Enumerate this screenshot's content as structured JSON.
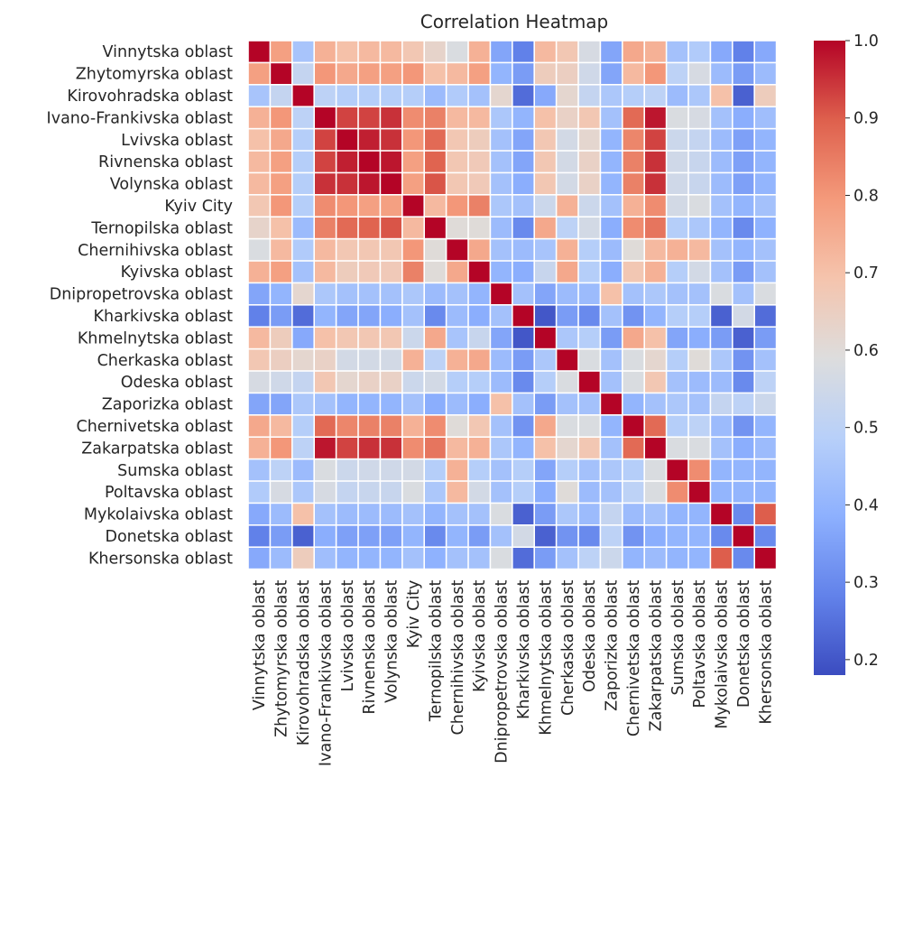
{
  "chart_data": {
    "type": "heatmap",
    "title": "Correlation Heatmap",
    "colormap": "coolwarm",
    "vmin": 0.18,
    "vmax": 1.0,
    "colorbar_ticks": [
      "1.0",
      "0.9",
      "0.8",
      "0.7",
      "0.6",
      "0.5",
      "0.4",
      "0.3",
      "0.2"
    ],
    "colorbar_tick_values": [
      1.0,
      0.9,
      0.8,
      0.7,
      0.6,
      0.5,
      0.4,
      0.3,
      0.2
    ],
    "labels": [
      "Vinnytska oblast",
      "Zhytomyrska oblast",
      "Kirovohradska oblast",
      "Ivano-Frankivska oblast",
      "Lvivska oblast",
      "Rivnenska oblast",
      "Volynska oblast",
      "Kyiv City",
      "Ternopilska oblast",
      "Chernihivska oblast",
      "Kyivska oblast",
      "Dnipropetrovska oblast",
      "Kharkivska oblast",
      "Khmelnytska oblast",
      "Cherkaska oblast",
      "Odeska oblast",
      "Zaporizka oblast",
      "Chernivetska oblast",
      "Zakarpatska oblast",
      "Sumska oblast",
      "Poltavska oblast",
      "Mykolaivska oblast",
      "Donetska oblast",
      "Khersonska oblast"
    ],
    "matrix": [
      [
        1.0,
        0.78,
        0.45,
        0.74,
        0.7,
        0.72,
        0.72,
        0.68,
        0.63,
        0.58,
        0.74,
        0.36,
        0.28,
        0.72,
        0.68,
        0.57,
        0.36,
        0.76,
        0.74,
        0.44,
        0.47,
        0.37,
        0.28,
        0.37
      ],
      [
        0.78,
        1.0,
        0.52,
        0.8,
        0.76,
        0.78,
        0.78,
        0.8,
        0.7,
        0.72,
        0.78,
        0.4,
        0.34,
        0.66,
        0.65,
        0.55,
        0.36,
        0.72,
        0.8,
        0.5,
        0.57,
        0.42,
        0.34,
        0.42
      ],
      [
        0.45,
        0.52,
        1.0,
        0.5,
        0.48,
        0.48,
        0.48,
        0.48,
        0.42,
        0.47,
        0.44,
        0.62,
        0.24,
        0.37,
        0.62,
        0.52,
        0.46,
        0.48,
        0.5,
        0.42,
        0.46,
        0.7,
        0.22,
        0.66
      ],
      [
        0.74,
        0.8,
        0.5,
        1.0,
        0.93,
        0.93,
        0.95,
        0.82,
        0.84,
        0.72,
        0.72,
        0.46,
        0.4,
        0.7,
        0.64,
        0.68,
        0.44,
        0.88,
        0.98,
        0.58,
        0.57,
        0.44,
        0.38,
        0.43
      ],
      [
        0.7,
        0.76,
        0.48,
        0.93,
        1.0,
        0.97,
        0.95,
        0.8,
        0.88,
        0.68,
        0.66,
        0.44,
        0.36,
        0.68,
        0.56,
        0.62,
        0.4,
        0.83,
        0.93,
        0.54,
        0.52,
        0.42,
        0.35,
        0.4
      ],
      [
        0.72,
        0.78,
        0.48,
        0.93,
        0.97,
        1.0,
        0.98,
        0.78,
        0.89,
        0.68,
        0.67,
        0.44,
        0.36,
        0.68,
        0.56,
        0.64,
        0.4,
        0.84,
        0.95,
        0.55,
        0.53,
        0.42,
        0.35,
        0.4
      ],
      [
        0.72,
        0.78,
        0.48,
        0.95,
        0.95,
        0.98,
        1.0,
        0.78,
        0.91,
        0.68,
        0.67,
        0.44,
        0.38,
        0.68,
        0.56,
        0.64,
        0.4,
        0.84,
        0.95,
        0.55,
        0.53,
        0.42,
        0.35,
        0.4
      ],
      [
        0.68,
        0.8,
        0.48,
        0.82,
        0.8,
        0.78,
        0.78,
        1.0,
        0.72,
        0.8,
        0.84,
        0.46,
        0.44,
        0.54,
        0.74,
        0.54,
        0.44,
        0.74,
        0.82,
        0.56,
        0.58,
        0.44,
        0.4,
        0.44
      ],
      [
        0.63,
        0.7,
        0.42,
        0.84,
        0.88,
        0.89,
        0.91,
        0.72,
        1.0,
        0.6,
        0.6,
        0.42,
        0.3,
        0.76,
        0.5,
        0.56,
        0.38,
        0.82,
        0.86,
        0.48,
        0.46,
        0.4,
        0.3,
        0.39
      ],
      [
        0.58,
        0.72,
        0.47,
        0.72,
        0.68,
        0.68,
        0.68,
        0.8,
        0.6,
        1.0,
        0.76,
        0.44,
        0.42,
        0.45,
        0.74,
        0.48,
        0.42,
        0.6,
        0.72,
        0.74,
        0.72,
        0.44,
        0.4,
        0.44
      ],
      [
        0.74,
        0.78,
        0.44,
        0.72,
        0.66,
        0.67,
        0.67,
        0.84,
        0.6,
        0.76,
        1.0,
        0.4,
        0.38,
        0.53,
        0.76,
        0.48,
        0.38,
        0.68,
        0.74,
        0.48,
        0.56,
        0.44,
        0.34,
        0.44
      ],
      [
        0.36,
        0.4,
        0.62,
        0.46,
        0.44,
        0.44,
        0.44,
        0.46,
        0.42,
        0.44,
        0.4,
        1.0,
        0.44,
        0.36,
        0.42,
        0.42,
        0.7,
        0.44,
        0.46,
        0.44,
        0.44,
        0.58,
        0.44,
        0.58
      ],
      [
        0.28,
        0.34,
        0.24,
        0.4,
        0.36,
        0.36,
        0.38,
        0.44,
        0.3,
        0.42,
        0.38,
        0.44,
        1.0,
        0.2,
        0.34,
        0.3,
        0.44,
        0.32,
        0.4,
        0.48,
        0.48,
        0.22,
        0.56,
        0.24
      ],
      [
        0.72,
        0.66,
        0.37,
        0.7,
        0.68,
        0.68,
        0.68,
        0.54,
        0.76,
        0.45,
        0.53,
        0.36,
        0.2,
        1.0,
        0.46,
        0.48,
        0.34,
        0.76,
        0.7,
        0.36,
        0.38,
        0.34,
        0.22,
        0.34
      ],
      [
        0.68,
        0.65,
        0.62,
        0.64,
        0.56,
        0.56,
        0.56,
        0.74,
        0.5,
        0.74,
        0.76,
        0.42,
        0.34,
        0.46,
        1.0,
        0.58,
        0.44,
        0.58,
        0.62,
        0.48,
        0.6,
        0.46,
        0.32,
        0.44
      ],
      [
        0.57,
        0.55,
        0.52,
        0.68,
        0.62,
        0.64,
        0.64,
        0.54,
        0.56,
        0.48,
        0.48,
        0.42,
        0.3,
        0.48,
        0.58,
        1.0,
        0.44,
        0.58,
        0.68,
        0.44,
        0.42,
        0.42,
        0.3,
        0.5
      ],
      [
        0.36,
        0.36,
        0.46,
        0.44,
        0.4,
        0.4,
        0.4,
        0.44,
        0.38,
        0.42,
        0.38,
        0.7,
        0.44,
        0.34,
        0.44,
        0.44,
        1.0,
        0.4,
        0.44,
        0.46,
        0.44,
        0.52,
        0.5,
        0.54
      ],
      [
        0.76,
        0.72,
        0.48,
        0.88,
        0.83,
        0.84,
        0.84,
        0.74,
        0.82,
        0.6,
        0.68,
        0.44,
        0.32,
        0.76,
        0.58,
        0.58,
        0.4,
        1.0,
        0.88,
        0.48,
        0.5,
        0.42,
        0.32,
        0.4
      ],
      [
        0.74,
        0.8,
        0.5,
        0.98,
        0.93,
        0.95,
        0.95,
        0.82,
        0.86,
        0.72,
        0.74,
        0.46,
        0.4,
        0.7,
        0.62,
        0.68,
        0.44,
        0.88,
        1.0,
        0.58,
        0.58,
        0.44,
        0.38,
        0.42
      ],
      [
        0.44,
        0.5,
        0.42,
        0.58,
        0.54,
        0.55,
        0.55,
        0.56,
        0.48,
        0.74,
        0.48,
        0.44,
        0.48,
        0.36,
        0.48,
        0.44,
        0.46,
        0.48,
        0.58,
        1.0,
        0.82,
        0.4,
        0.4,
        0.4
      ],
      [
        0.47,
        0.57,
        0.46,
        0.57,
        0.52,
        0.53,
        0.53,
        0.58,
        0.46,
        0.72,
        0.56,
        0.44,
        0.48,
        0.38,
        0.6,
        0.42,
        0.44,
        0.5,
        0.58,
        0.82,
        1.0,
        0.4,
        0.4,
        0.4
      ],
      [
        0.37,
        0.42,
        0.7,
        0.44,
        0.42,
        0.42,
        0.42,
        0.44,
        0.4,
        0.44,
        0.44,
        0.58,
        0.22,
        0.34,
        0.46,
        0.42,
        0.52,
        0.42,
        0.44,
        0.4,
        0.4,
        1.0,
        0.3,
        0.9
      ],
      [
        0.28,
        0.34,
        0.22,
        0.38,
        0.35,
        0.35,
        0.35,
        0.4,
        0.3,
        0.4,
        0.34,
        0.44,
        0.56,
        0.22,
        0.32,
        0.3,
        0.5,
        0.32,
        0.38,
        0.4,
        0.4,
        0.3,
        1.0,
        0.3
      ],
      [
        0.37,
        0.42,
        0.66,
        0.43,
        0.4,
        0.4,
        0.4,
        0.44,
        0.39,
        0.44,
        0.44,
        0.58,
        0.24,
        0.34,
        0.44,
        0.5,
        0.54,
        0.4,
        0.42,
        0.4,
        0.4,
        0.9,
        0.3,
        1.0
      ]
    ]
  }
}
